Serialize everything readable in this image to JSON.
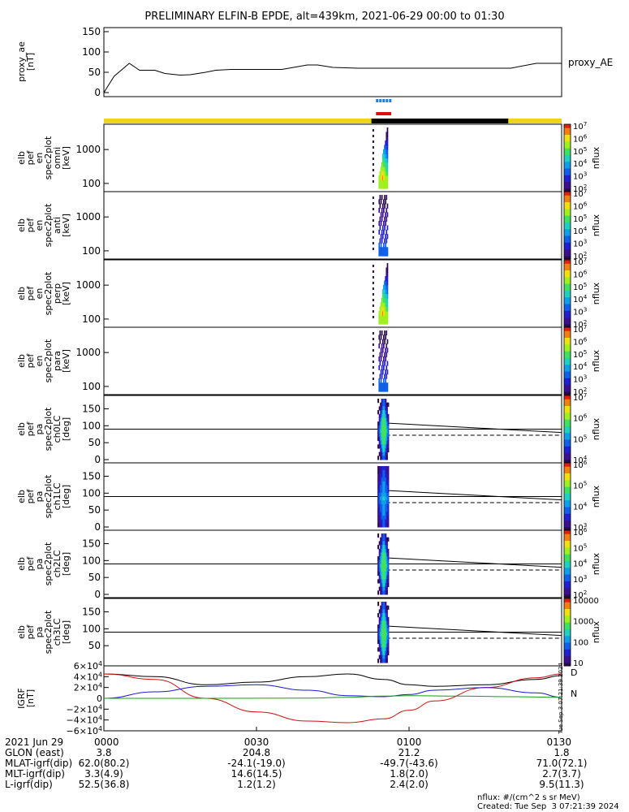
{
  "title": "PRELIMINARY ELFIN-B EPDE, alt=439km, 2021-06-29 00:00 to 01:30",
  "chart_data": [
    {
      "type": "line",
      "panel": "proxy_ae",
      "ylabel_lines": [
        "proxy_ae",
        "[nT]"
      ],
      "legend": "proxy_AE",
      "ylim": [
        -10,
        160
      ],
      "yticks": [
        "0",
        "50",
        "100",
        "150"
      ],
      "x_minutes": [
        0,
        2,
        5,
        7,
        10,
        12,
        15,
        17,
        20,
        22,
        25,
        30,
        35,
        40,
        42,
        45,
        50,
        55,
        60,
        70,
        80,
        85,
        90
      ],
      "values": [
        0,
        40,
        72,
        55,
        55,
        47,
        43,
        44,
        50,
        55,
        57,
        57,
        57,
        68,
        68,
        62,
        60,
        60,
        60,
        60,
        60,
        72,
        72
      ]
    },
    {
      "type": "heatmap",
      "panel": "omni",
      "ylabel_lines": [
        "elb",
        "pef",
        "en",
        "spec2plot",
        "omni",
        "[keV]"
      ],
      "yscale": "log",
      "yticks": [
        "100",
        "1000"
      ],
      "colorbar": {
        "label": "nflux",
        "ticks": [
          "10^2",
          "10^3",
          "10^4",
          "10^5",
          "10^6",
          "10^7"
        ]
      }
    },
    {
      "type": "heatmap",
      "panel": "anti",
      "ylabel_lines": [
        "elb",
        "pef",
        "en",
        "spec2plot",
        "anti",
        "[keV]"
      ],
      "yscale": "log",
      "yticks": [
        "100",
        "1000"
      ],
      "colorbar": {
        "label": "nflux",
        "ticks": [
          "10^2",
          "10^3",
          "10^4",
          "10^5",
          "10^6",
          "10^7"
        ]
      }
    },
    {
      "type": "heatmap",
      "panel": "perp",
      "ylabel_lines": [
        "elb",
        "pef",
        "en",
        "spec2plot",
        "perp",
        "[keV]"
      ],
      "yscale": "log",
      "yticks": [
        "100",
        "1000"
      ],
      "colorbar": {
        "label": "nflux",
        "ticks": [
          "10^2",
          "10^3",
          "10^4",
          "10^5",
          "10^6",
          "10^7"
        ]
      }
    },
    {
      "type": "heatmap",
      "panel": "para",
      "ylabel_lines": [
        "elb",
        "pef",
        "en",
        "spec2plot",
        "para",
        "[keV]"
      ],
      "yscale": "log",
      "yticks": [
        "100",
        "1000"
      ],
      "colorbar": {
        "label": "nflux",
        "ticks": [
          "10^2",
          "10^3",
          "10^4",
          "10^5",
          "10^6",
          "10^7"
        ]
      }
    },
    {
      "type": "heatmap",
      "panel": "ch0LC",
      "ylabel_lines": [
        "elb",
        "pef",
        "pa",
        "spec2plot",
        "ch0LC",
        "[deg]"
      ],
      "ylim": [
        0,
        180
      ],
      "yticks": [
        "0",
        "50",
        "100",
        "150"
      ],
      "colorbar": {
        "label": "nflux",
        "ticks": [
          "10^4",
          "10^5",
          "10^6",
          "10^7"
        ]
      }
    },
    {
      "type": "heatmap",
      "panel": "ch1LC",
      "ylabel_lines": [
        "elb",
        "pef",
        "pa",
        "spec2plot",
        "ch1LC",
        "[deg]"
      ],
      "ylim": [
        0,
        180
      ],
      "yticks": [
        "0",
        "50",
        "100",
        "150"
      ],
      "colorbar": {
        "label": "nflux",
        "ticks": [
          "10^3",
          "10^4",
          "10^5",
          "10^6"
        ]
      }
    },
    {
      "type": "heatmap",
      "panel": "ch2LC",
      "ylabel_lines": [
        "elb",
        "pef",
        "pa",
        "spec2plot",
        "ch2LC",
        "[deg]"
      ],
      "ylim": [
        0,
        180
      ],
      "yticks": [
        "0",
        "50",
        "100",
        "150"
      ],
      "colorbar": {
        "label": "nflux",
        "ticks": [
          "10^2",
          "10^3",
          "10^4",
          "10^5",
          "10^6"
        ]
      }
    },
    {
      "type": "heatmap",
      "panel": "ch3LC",
      "ylabel_lines": [
        "elb",
        "pef",
        "pa",
        "spec2plot",
        "ch3LC",
        "[deg]"
      ],
      "ylim": [
        0,
        180
      ],
      "yticks": [
        "50",
        "100",
        "150"
      ],
      "colorbar": {
        "label": "nflux",
        "ticks": [
          "10",
          "100",
          "1000",
          "10000"
        ]
      }
    },
    {
      "type": "line",
      "panel": "IGRF",
      "ylabel_lines": [
        "IGRF",
        "[nT]"
      ],
      "ylim": [
        -60000,
        60000
      ],
      "yticks": [
        "6×10^4",
        "4×10^4",
        "2×10^4",
        "0",
        "−2×10^4",
        "−4×10^4",
        "−6×10^4"
      ],
      "component_labels": [
        "D",
        "N"
      ],
      "series": [
        {
          "color": "#000000",
          "x_minutes": [
            0,
            10,
            20,
            30,
            40,
            48,
            55,
            60,
            65,
            75,
            85,
            90
          ],
          "values": [
            45000,
            40000,
            25000,
            30000,
            40000,
            45000,
            35000,
            25000,
            22000,
            25000,
            35000,
            42000
          ]
        },
        {
          "color": "#d01010",
          "x_minutes": [
            0,
            10,
            20,
            30,
            40,
            48,
            55,
            60,
            65,
            75,
            85,
            90
          ],
          "values": [
            45000,
            35000,
            0,
            -25000,
            -42000,
            -45000,
            -38000,
            -22000,
            -5000,
            20000,
            38000,
            45000
          ]
        },
        {
          "color": "#1a1ad0",
          "x_minutes": [
            0,
            10,
            20,
            30,
            40,
            48,
            55,
            60,
            65,
            75,
            85,
            90
          ],
          "values": [
            0,
            12000,
            22000,
            25000,
            15000,
            5000,
            3000,
            7000,
            15000,
            20000,
            10000,
            2000
          ]
        },
        {
          "color": "#10a010",
          "x_minutes": [
            0,
            20,
            40,
            48,
            55,
            60,
            70,
            80,
            90
          ],
          "values": [
            0,
            0,
            500,
            2000,
            4000,
            5000,
            4000,
            3000,
            2000
          ]
        }
      ]
    }
  ],
  "x_axis": {
    "ticks": [
      "0000",
      "0030",
      "0100",
      "0130"
    ],
    "rows": [
      {
        "label": "2021 Jun 29",
        "values": [
          "0000",
          "0030",
          "0100",
          "0130"
        ]
      },
      {
        "label": "GLON (east)",
        "values": [
          "3.8",
          "204.8",
          "21.2",
          "1.8"
        ]
      },
      {
        "label": "MLAT-igrf(dip)",
        "values": [
          "62.0(80.2)",
          "-24.1(-19.0)",
          "-49.7(-43.6)",
          "71.0(72.1)"
        ]
      },
      {
        "label": "MLT-igrf(dip)",
        "values": [
          "3.3(4.9)",
          "14.6(14.5)",
          "1.8(2.0)",
          "2.7(3.7)"
        ]
      },
      {
        "label": "L-igrf(dip)",
        "values": [
          "52.5(36.8)",
          "1.2(1.2)",
          "2.4(2.0)",
          "9.5(11.3)"
        ]
      }
    ]
  },
  "side_timestamp": "Tue Sep  3 07:21:39 2024",
  "footer_units": "nflux: #/(cm^2 s sr MeV)",
  "footer_created": "Created: Tue Sep  3 07:21:39 2024",
  "colors": {
    "sunlit": "#f4d21a",
    "eclipse": "#000000",
    "bar_blue": "#1a7de8",
    "bar_red": "#e01010"
  }
}
